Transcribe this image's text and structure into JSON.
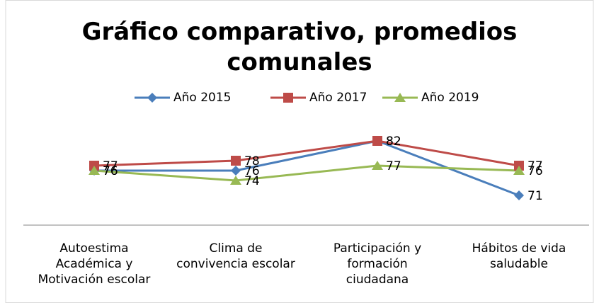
{
  "chart_data": {
    "type": "line",
    "title": "Gráfico comparativo, promedios\ncomunales",
    "categories": [
      "Autoestima\nAcadémica y\nMotivación escolar",
      "Clima de\nconvivencia escolar",
      "Participación y\nformación\nciudadana",
      "Hábitos de vida\nsaludable"
    ],
    "series": [
      {
        "name": "Año 2015",
        "color": "#4a7ebb",
        "marker": "diamond",
        "values": [
          76,
          76,
          82,
          71
        ]
      },
      {
        "name": "Año 2017",
        "color": "#be4b48",
        "marker": "square",
        "values": [
          77,
          78,
          82,
          77
        ]
      },
      {
        "name": "Año 2019",
        "color": "#98b954",
        "marker": "triangle",
        "values": [
          76,
          74,
          77,
          76
        ]
      }
    ],
    "ylim": [
      65,
      86
    ],
    "legend": "top",
    "data_labels": true
  }
}
